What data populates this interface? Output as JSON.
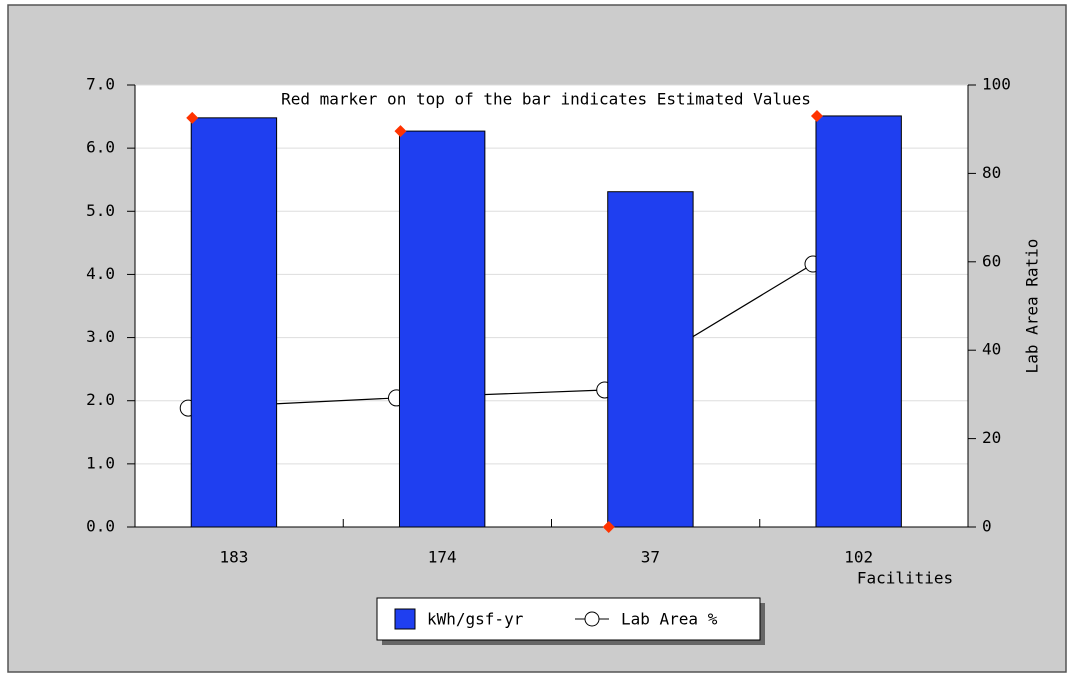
{
  "chart_data": {
    "type": "bar",
    "title": "Red marker on top of the bar indicates Estimated Values",
    "xlabel": "Facilities",
    "y2label": "Lab Area Ratio",
    "categories": [
      "183",
      "174",
      "37",
      "102"
    ],
    "series": [
      {
        "name": "kWh/gsf-yr",
        "color": "#1f3ff0",
        "values": [
          6.48,
          6.27,
          5.31,
          6.51
        ]
      },
      {
        "name": "Lab Area %",
        "color": "#000000",
        "axis": "y2",
        "values": [
          26.9,
          29.2,
          31.0,
          59.5
        ]
      }
    ],
    "markers": {
      "color": "#ff3300",
      "values": [
        6.48,
        6.27,
        0,
        6.51
      ]
    },
    "ylim": [
      0,
      7
    ],
    "yticks": [
      {
        "value": 0,
        "label": "0.0"
      },
      {
        "value": 1,
        "label": "1.0"
      },
      {
        "value": 2,
        "label": "2.0"
      },
      {
        "value": 3,
        "label": "3.0"
      },
      {
        "value": 4,
        "label": "4.0"
      },
      {
        "value": 5,
        "label": "5.0"
      },
      {
        "value": 6,
        "label": "6.0"
      },
      {
        "value": 7,
        "label": "7.0"
      }
    ],
    "y2lim": [
      0,
      100
    ],
    "y2ticks": [
      0,
      20,
      40,
      60,
      80,
      100
    ],
    "grid": true
  }
}
